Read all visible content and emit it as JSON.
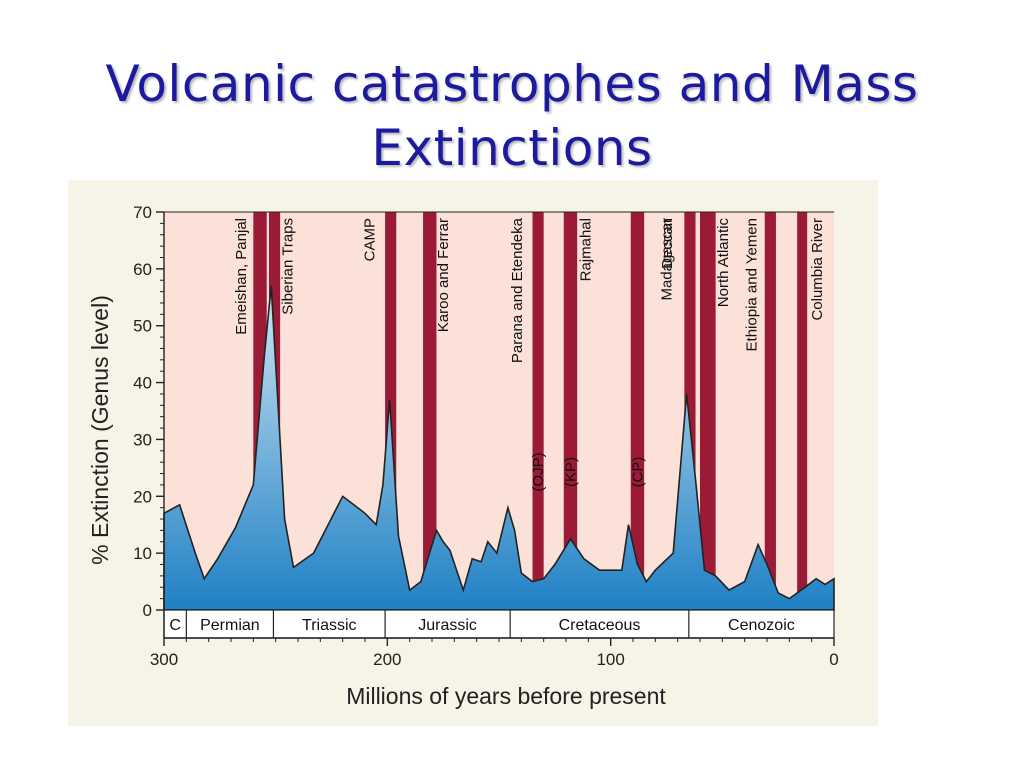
{
  "slide": {
    "title_line1": "Volcanic catastrophes and Mass",
    "title_line2": "Extinctions"
  },
  "colors": {
    "title": "#1c1a9e",
    "event_band": "#9b1b37",
    "plot_bg": "#fbe1d8",
    "area_top": "#cfe6f4",
    "area_bottom": "#1f80c4"
  },
  "chart_data": {
    "type": "area",
    "xlabel": "Millions of years before present",
    "ylabel": "% Extinction (Genus level)",
    "xlim": [
      300,
      0
    ],
    "ylim": [
      0,
      70
    ],
    "x_ticks": [
      300,
      200,
      100,
      0
    ],
    "y_ticks": [
      0,
      10,
      20,
      30,
      40,
      50,
      60,
      70
    ],
    "series": [
      {
        "x": [
          300,
          293,
          286,
          282,
          276,
          268,
          260,
          255,
          252,
          246,
          242,
          233,
          220,
          210,
          205,
          202,
          199,
          195,
          190,
          185,
          178,
          175,
          172,
          166,
          162,
          158,
          155,
          151,
          146,
          143,
          140,
          135,
          130,
          125,
          118,
          112,
          105,
          100,
          95,
          92,
          88,
          84,
          80,
          72,
          66,
          62,
          58,
          53,
          47,
          40,
          34,
          30,
          25,
          20,
          13,
          8,
          4,
          0
        ],
        "y": [
          17,
          18.5,
          10,
          5.5,
          9,
          14.5,
          22,
          45,
          57,
          16,
          7.5,
          10,
          20,
          17,
          15,
          22,
          37,
          13,
          3.5,
          5,
          14,
          12,
          10.5,
          3.5,
          9,
          8.5,
          12,
          10,
          18,
          14,
          6.5,
          5,
          5.5,
          8,
          12.5,
          9,
          7,
          7,
          7,
          15,
          8,
          5,
          7,
          10,
          38,
          23,
          7,
          6,
          3.5,
          5,
          11.5,
          8,
          3,
          2,
          4,
          5.5,
          4.5,
          5.5
        ]
      }
    ],
    "events": [
      {
        "label": "Emeishan, Panjal",
        "x0": 260,
        "x1": 254
      },
      {
        "label": "Siberian Traps",
        "x0": 253,
        "x1": 248
      },
      {
        "label": "CAMP",
        "x0": 201,
        "x1": 196
      },
      {
        "label": "Karoo and Ferrar",
        "x0": 184,
        "x1": 178
      },
      {
        "label": "Parana and Etendeka",
        "x0": 135,
        "x1": 130
      },
      {
        "label": "Rajmahal",
        "x0": 121,
        "x1": 115
      },
      {
        "label": "Madagascar",
        "x0": 91,
        "x1": 85
      },
      {
        "label": "Deccan",
        "x0": 67,
        "x1": 62
      },
      {
        "label": "North Atlantic",
        "x0": 60,
        "x1": 53
      },
      {
        "label": "Ethiopia and Yemen",
        "x0": 31,
        "x1": 26
      },
      {
        "label": "Columbia River",
        "x0": 16.5,
        "x1": 12
      }
    ],
    "annotations": [
      {
        "text": "(OJP)",
        "x": 132.5
      },
      {
        "text": "(KP)",
        "x": 118
      },
      {
        "text": "(CP)",
        "x": 88
      }
    ],
    "periods": [
      {
        "label": "C",
        "from": 300,
        "to": 290
      },
      {
        "label": "Permian",
        "from": 290,
        "to": 251
      },
      {
        "label": "Triassic",
        "from": 251,
        "to": 201
      },
      {
        "label": "Jurassic",
        "from": 201,
        "to": 145
      },
      {
        "label": "Cretaceous",
        "from": 145,
        "to": 65
      },
      {
        "label": "Cenozoic",
        "from": 65,
        "to": 0
      }
    ]
  }
}
